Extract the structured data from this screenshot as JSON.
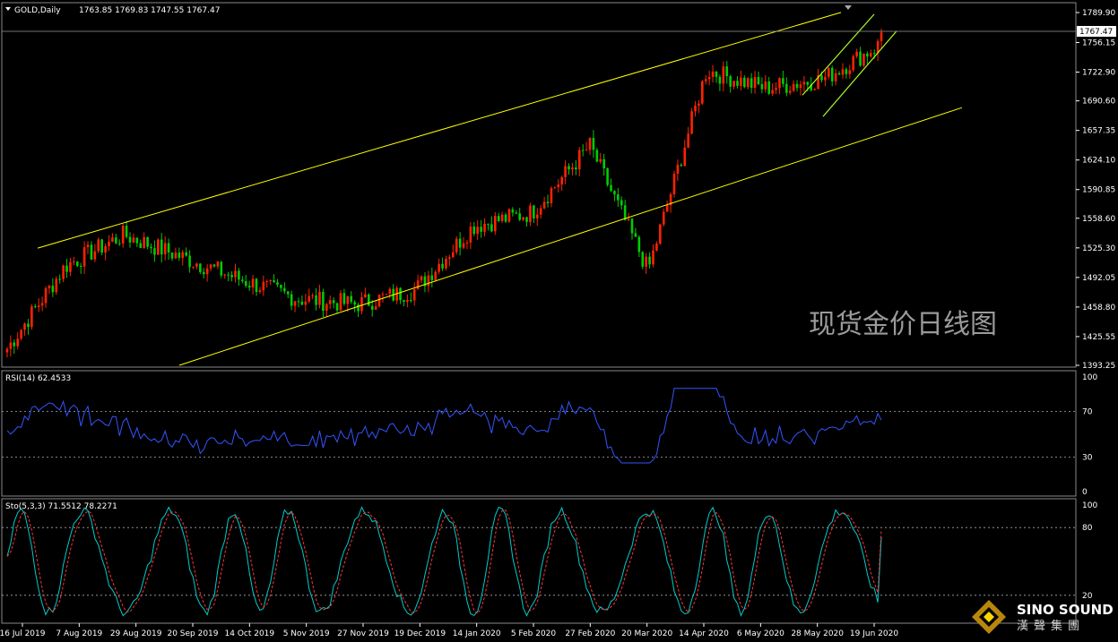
{
  "symbol_header": "GOLD,Daily",
  "ohlc_header": "1763.85 1769.83 1747.55 1767.47",
  "current_price": "1767.47",
  "watermark": "现货金价日线图",
  "brand": {
    "name": "SINO SOUND",
    "chinese": "漢聲集團"
  },
  "colors": {
    "background": "#000000",
    "bull": "#ff2200",
    "bear": "#00cc00",
    "channel": "#ffff00",
    "rsi": "#3355ff",
    "sto_main": "#00cccc",
    "sto_signal": "#ff3333",
    "axis": "#ffffff"
  },
  "chart_data": [
    {
      "type": "candlestick",
      "title": "GOLD,Daily",
      "y_ticks": [
        "1789.90",
        "1756.15",
        "1722.90",
        "1690.60",
        "1657.35",
        "1624.10",
        "1590.85",
        "1558.60",
        "1525.30",
        "1492.05",
        "1458.80",
        "1425.55",
        "1393.25"
      ],
      "ylim": [
        1393.25,
        1789.9
      ],
      "x_ticks": [
        "16 Jul 2019",
        "7 Aug 2019",
        "29 Aug 2019",
        "20 Sep 2019",
        "14 Oct 2019",
        "5 Nov 2019",
        "27 Nov 2019",
        "19 Dec 2019",
        "14 Jan 2020",
        "5 Feb 2020",
        "27 Feb 2020",
        "20 Mar 2020",
        "14 Apr 2020",
        "6 May 2020",
        "28 May 2020",
        "19 Jun 2020"
      ],
      "last_price": 1767.47,
      "key_closes": [
        {
          "x": "16 Jul 2019",
          "y": 1412
        },
        {
          "x": "7 Aug 2019",
          "y": 1505
        },
        {
          "x": "29 Aug 2019",
          "y": 1540
        },
        {
          "x": "20 Sep 2019",
          "y": 1515
        },
        {
          "x": "14 Oct 2019",
          "y": 1490
        },
        {
          "x": "5 Nov 2019",
          "y": 1468
        },
        {
          "x": "27 Nov 2019",
          "y": 1462
        },
        {
          "x": "19 Dec 2019",
          "y": 1478
        },
        {
          "x": "14 Jan 2020",
          "y": 1550
        },
        {
          "x": "5 Feb 2020",
          "y": 1565
        },
        {
          "x": "27 Feb 2020",
          "y": 1640
        },
        {
          "x": "20 Mar 2020",
          "y": 1500
        },
        {
          "x": "14 Apr 2020",
          "y": 1725
        },
        {
          "x": "6 May 2020",
          "y": 1705
        },
        {
          "x": "28 May 2020",
          "y": 1715
        },
        {
          "x": "19 Jun 2020",
          "y": 1755
        }
      ]
    },
    {
      "type": "line",
      "title": "RSI(14) 62.4533",
      "y_ticks": [
        "100",
        "70",
        "30",
        "0"
      ],
      "ylim": [
        0,
        100
      ],
      "levels": [
        70,
        30
      ],
      "series": [
        {
          "name": "RSI(14)",
          "last": 62.4533
        }
      ]
    },
    {
      "type": "line",
      "title": "Sto(5,3,3) 71.5512 78.2271",
      "y_ticks": [
        "100",
        "80",
        "20"
      ],
      "ylim": [
        0,
        100
      ],
      "levels": [
        80,
        20
      ],
      "series": [
        {
          "name": "main",
          "last": 71.5512
        },
        {
          "name": "signal",
          "last": 78.2271
        }
      ]
    }
  ]
}
